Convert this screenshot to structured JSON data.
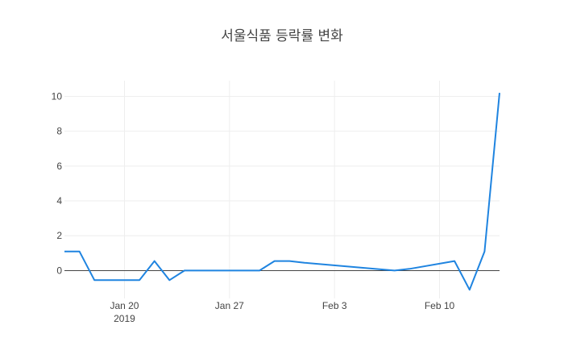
{
  "chart_data": {
    "type": "line",
    "title": "서울식품 등락률 변화",
    "xlabel": "",
    "ylabel": "",
    "x_ticks": [
      "Jan 20",
      "Jan 27",
      "Feb 3",
      "Feb 10"
    ],
    "x_tick_year": "2019",
    "y_ticks": [
      "0",
      "2",
      "4",
      "6",
      "8",
      "10"
    ],
    "ylim": [
      -1.6,
      10.9
    ],
    "xlim": [
      "2019-01-16",
      "2019-02-14"
    ],
    "grid": true,
    "zero_line": true,
    "colors": {
      "line": "#1f84e0",
      "grid": "#eeeeee",
      "zero_line": "#444444"
    },
    "series": [
      {
        "x": [
          "2019-01-16",
          "2019-01-17",
          "2019-01-18",
          "2019-01-21",
          "2019-01-22",
          "2019-01-23",
          "2019-01-24",
          "2019-01-25",
          "2019-01-28",
          "2019-01-29",
          "2019-01-30",
          "2019-01-31",
          "2019-02-01",
          "2019-02-07",
          "2019-02-08",
          "2019-02-11",
          "2019-02-12",
          "2019-02-13",
          "2019-02-14"
        ],
        "y": [
          1.1,
          1.1,
          -0.55,
          -0.55,
          0.55,
          -0.55,
          0,
          0,
          0,
          0,
          0.55,
          0.55,
          0.45,
          0,
          0.1,
          0.55,
          -1.1,
          1.1,
          10.2
        ]
      }
    ]
  }
}
